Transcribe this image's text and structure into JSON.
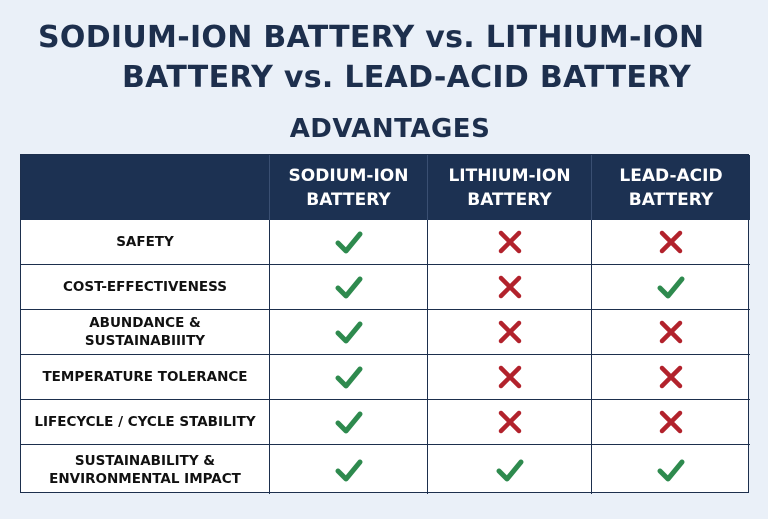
{
  "title": {
    "line1": "SODIUM-ION BATTERY vs. LITHIUM-ION",
    "line2": "BATTERY vs. LEAD-ACID BATTERY"
  },
  "subtitle": "ADVANTAGES",
  "table": {
    "columns": [
      {
        "line1": "SODIUM-ION",
        "line2": "BATTERY"
      },
      {
        "line1": "LITHIUM-ION",
        "line2": "BATTERY"
      },
      {
        "line1": "LEAD-ACID",
        "line2": "BATTERY"
      }
    ],
    "rows": [
      {
        "label_line1": "SAFETY",
        "label_line2": "",
        "values": [
          "check",
          "cross",
          "cross"
        ]
      },
      {
        "label_line1": "COST-EFFECTIVENESS",
        "label_line2": "",
        "values": [
          "check",
          "cross",
          "check"
        ]
      },
      {
        "label_line1": "ABUNDANCE & SUSTAINABIIITY",
        "label_line2": "",
        "values": [
          "check",
          "cross",
          "cross"
        ]
      },
      {
        "label_line1": "TEMPERATURE TOLERANCE",
        "label_line2": "",
        "values": [
          "check",
          "cross",
          "cross"
        ]
      },
      {
        "label_line1": "LIFECYCLE / CYCLE STABILITY",
        "label_line2": "",
        "values": [
          "check",
          "cross",
          "cross"
        ]
      },
      {
        "label_line1": "SUSTAINABILITY &",
        "label_line2": "ENVIRONMENTAL IMPACT",
        "values": [
          "check",
          "check",
          "check"
        ]
      }
    ]
  },
  "colors": {
    "header_bg": "#1c3152",
    "check": "#2e8a4e",
    "cross": "#b2222c",
    "title": "#1d2f4d",
    "background": "#eaf0f8"
  },
  "icons": {
    "check": "check-icon",
    "cross": "cross-icon"
  }
}
